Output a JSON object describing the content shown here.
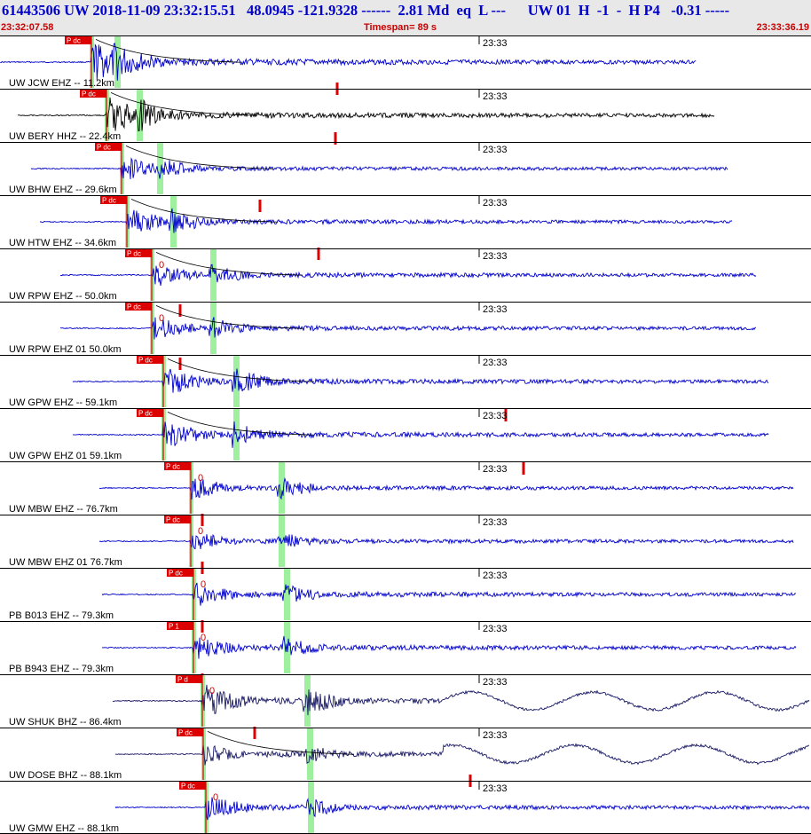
{
  "header": {
    "title": "61443506 UW 2018-11-09 23:32:15.51   48.0945 -121.9328 ------  2.81 Md  eq  L ---      UW 01  H  -1  -  H P4   -0.31 -----",
    "start_time": "23:32:07.58",
    "timespan": "Timespan=  89 s",
    "end_time": "23:33:36.19"
  },
  "colors": {
    "trace_blue": "#0000cc",
    "trace_dark": "#000000",
    "trace_navy": "#1a1a66",
    "pick_red": "#dd0000",
    "s_window_green": "#9ef09e"
  },
  "minute_mark_label": "23:33",
  "channels": [
    {
      "label": "UW JCW EHZ -- 11.2km",
      "pick": "P dc",
      "zero": "",
      "color": "blue",
      "start": 0.3,
      "p": 103,
      "s": 132,
      "amp": 1.0,
      "end": 785,
      "coda": 0.8,
      "red": [
        380,
        62
      ]
    },
    {
      "label": "UW BERY HHZ -- 22.4km",
      "pick": "P dc",
      "zero": "",
      "color": "dark",
      "start": 20,
      "p": 120,
      "s": 157,
      "amp": 0.9,
      "end": 805,
      "coda": 0.7,
      "red": [
        378,
        118
      ]
    },
    {
      "label": "UW BHW EHZ -- 29.6km",
      "pick": "P dc",
      "zero": "",
      "color": "blue",
      "start": 35,
      "p": 137,
      "s": 180,
      "amp": 0.6,
      "end": 820,
      "coda": 0.3,
      "red": [
        293,
        194
      ]
    },
    {
      "label": "UW HTW EHZ -- 34.6km",
      "pick": "P dc",
      "zero": "",
      "color": "blue",
      "start": 45,
      "p": 143,
      "s": 195,
      "amp": 0.7,
      "end": 825,
      "coda": 0.4,
      "red": [
        359,
        248
      ]
    },
    {
      "label": "UW RPW EHZ -- 50.0km",
      "pick": "P dc",
      "zero": "0",
      "color": "blue",
      "start": 68,
      "p": 171,
      "s": 240,
      "amp": 0.6,
      "end": 852,
      "coda": 0.5,
      "red": [
        203,
        312
      ]
    },
    {
      "label": "UW RPW EHZ 01 50.0km",
      "pick": "P dc",
      "zero": "0",
      "color": "blue",
      "start": 68,
      "p": 171,
      "s": 240,
      "amp": 0.6,
      "end": 852,
      "coda": 0.5,
      "red": [
        203,
        372
      ]
    },
    {
      "label": "UW GPW EHZ -- 59.1km",
      "pick": "P dc",
      "zero": "",
      "color": "blue",
      "start": 82,
      "p": 184,
      "s": 266,
      "amp": 0.7,
      "end": 866,
      "coda": 0.6,
      "red": [
        570,
        430
      ]
    },
    {
      "label": "UW GPW EHZ 01 59.1km",
      "pick": "P dc",
      "zero": "",
      "color": "blue",
      "start": 82,
      "p": 184,
      "s": 266,
      "amp": 0.7,
      "end": 866,
      "coda": 0.6,
      "red": [
        590,
        490
      ]
    },
    {
      "label": "UW MBW EHZ -- 76.7km",
      "pick": "P dc",
      "zero": "0",
      "color": "blue",
      "start": 112,
      "p": 215,
      "s": 317,
      "amp": 0.6,
      "end": 894,
      "coda": 0.4,
      "red": [
        228,
        548
      ]
    },
    {
      "label": "UW MBW EHZ 01 76.7km",
      "pick": "P dc",
      "zero": "0",
      "color": "blue",
      "start": 112,
      "p": 215,
      "s": 317,
      "amp": 0.5,
      "end": 894,
      "coda": 0.4,
      "red": [
        228,
        602
      ]
    },
    {
      "label": "PB B013 EHZ -- 79.3km",
      "pick": "P dc",
      "zero": "0",
      "color": "blue",
      "start": 115,
      "p": 218,
      "s": 323,
      "amp": 0.6,
      "end": 897,
      "coda": 0.6,
      "red": [
        228,
        668
      ]
    },
    {
      "label": "PB B943 EHZ -- 79.3km",
      "pick": "P 1",
      "zero": "0",
      "color": "blue",
      "start": 115,
      "p": 218,
      "s": 323,
      "amp": 0.6,
      "end": 897,
      "coda": 0.6,
      "red": [
        228,
        728
      ]
    },
    {
      "label": "UW SHUK BHZ -- 86.4km",
      "pick": "P d",
      "zero": "0",
      "color": "navy",
      "start": 127,
      "p": 228,
      "s": 346,
      "amp": 0.8,
      "end": 912,
      "coda": 0.7,
      "red": [
        287,
        788
      ]
    },
    {
      "label": "UW DOSE BHZ -- 88.1km",
      "pick": "P dc",
      "zero": "",
      "color": "navy",
      "start": 130,
      "p": 229,
      "s": 349,
      "amp": 0.5,
      "end": 912,
      "coda": 0.6,
      "red": [
        530,
        842
      ]
    },
    {
      "label": "UW GMW EHZ -- 88.1km",
      "pick": "P dc",
      "zero": "0",
      "color": "blue",
      "start": 130,
      "p": 232,
      "s": 350,
      "amp": 0.6,
      "end": 912,
      "coda": 0.5,
      "red": [
        240,
        910
      ]
    }
  ]
}
